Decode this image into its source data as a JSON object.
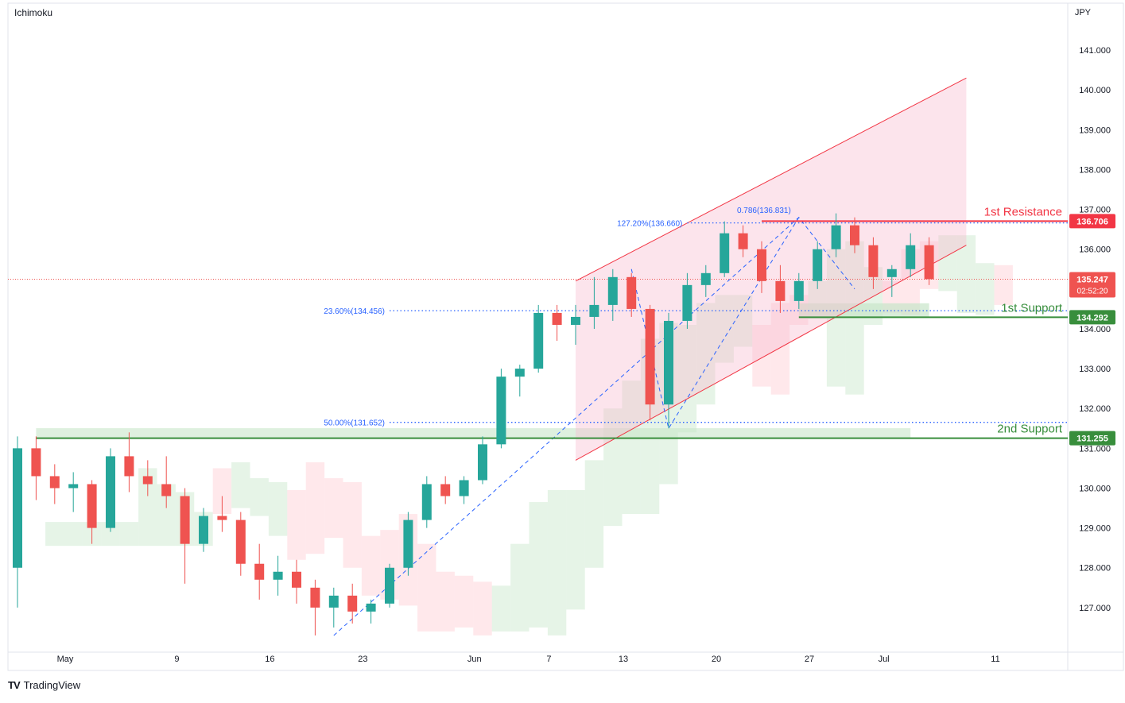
{
  "indicator": "Ichimoku",
  "currency": "JPY",
  "brand": "TradingView",
  "brand_logo": "TV",
  "chart_data": {
    "type": "candlestick",
    "ylim": [
      126.0,
      141.7
    ],
    "y_ticks": [
      127,
      128,
      129,
      130,
      131,
      132,
      133,
      134,
      135,
      136,
      137,
      138,
      139,
      140,
      141
    ],
    "x_ticks": [
      {
        "label": "May",
        "i": 0
      },
      {
        "label": "9",
        "i": 6
      },
      {
        "label": "16",
        "i": 11
      },
      {
        "label": "23",
        "i": 16
      },
      {
        "label": "Jun",
        "i": 22
      },
      {
        "label": "7",
        "i": 26
      },
      {
        "label": "13",
        "i": 30
      },
      {
        "label": "20",
        "i": 35
      },
      {
        "label": "27",
        "i": 40
      },
      {
        "label": "Jul",
        "i": 44
      },
      {
        "label": "11",
        "i": 50
      }
    ],
    "last_price": "135.247",
    "countdown": "02:52:20",
    "levels": [
      {
        "name": "1st Resistance",
        "value": 136.706,
        "label": "136.706",
        "color": "#f23645"
      },
      {
        "name": "1st Support",
        "value": 134.292,
        "label": "134.292",
        "color": "#388e3c"
      },
      {
        "name": "2nd Support",
        "value": 131.255,
        "label": "131.255",
        "color": "#388e3c"
      }
    ],
    "fib_labels": [
      {
        "text": "127.20%(136.660)",
        "value": 136.66
      },
      {
        "text": "23.60%(134.456)",
        "value": 134.456
      },
      {
        "text": "50.00%(131.652)",
        "value": 131.652
      },
      {
        "text": "0.786(136.831)",
        "value": 136.831
      }
    ],
    "channel": {
      "upper": [
        [
          30,
          135.2
        ],
        [
          51,
          140.3
        ]
      ],
      "lower": [
        [
          30,
          130.7
        ],
        [
          51,
          136.1
        ]
      ]
    },
    "colors": {
      "up": "#26a69a",
      "down": "#ef5350",
      "resistance": "#f23645",
      "support": "#388e3c",
      "fib": "#2962ff"
    },
    "candles": [
      [
        128.0,
        131.3,
        127.0,
        131.0
      ],
      [
        131.0,
        131.3,
        129.7,
        130.3
      ],
      [
        130.3,
        130.6,
        129.6,
        130.0
      ],
      [
        130.0,
        130.4,
        129.4,
        130.1
      ],
      [
        130.1,
        130.2,
        128.6,
        129.0
      ],
      [
        129.0,
        131.0,
        128.9,
        130.8
      ],
      [
        130.8,
        131.4,
        129.9,
        130.3
      ],
      [
        130.3,
        130.7,
        129.8,
        130.1
      ],
      [
        130.1,
        130.8,
        129.5,
        129.8
      ],
      [
        129.8,
        130.0,
        127.6,
        128.6
      ],
      [
        128.6,
        129.5,
        128.4,
        129.3
      ],
      [
        129.3,
        129.8,
        128.9,
        129.2
      ],
      [
        129.2,
        129.4,
        127.8,
        128.1
      ],
      [
        128.1,
        128.6,
        127.2,
        127.7
      ],
      [
        127.7,
        128.3,
        127.3,
        127.9
      ],
      [
        127.9,
        128.2,
        127.1,
        127.5
      ],
      [
        127.5,
        127.7,
        126.3,
        127.0
      ],
      [
        127.0,
        127.5,
        126.5,
        127.3
      ],
      [
        127.3,
        127.6,
        126.6,
        126.9
      ],
      [
        126.9,
        127.2,
        126.6,
        127.1
      ],
      [
        127.1,
        128.1,
        127.0,
        128.0
      ],
      [
        128.0,
        129.4,
        127.8,
        129.2
      ],
      [
        129.2,
        130.3,
        129.0,
        130.1
      ],
      [
        130.1,
        130.3,
        129.6,
        129.8
      ],
      [
        129.8,
        130.3,
        129.6,
        130.2
      ],
      [
        130.2,
        131.3,
        130.1,
        131.1
      ],
      [
        131.1,
        133.0,
        131.0,
        132.8
      ],
      [
        132.8,
        133.1,
        132.3,
        133.0
      ],
      [
        133.0,
        134.6,
        132.9,
        134.4
      ],
      [
        134.4,
        134.6,
        133.7,
        134.1
      ],
      [
        134.1,
        134.6,
        133.6,
        134.3
      ],
      [
        134.3,
        135.3,
        134.0,
        134.6
      ],
      [
        134.6,
        135.5,
        134.2,
        135.3
      ],
      [
        135.3,
        135.4,
        134.3,
        134.5
      ],
      [
        134.5,
        134.6,
        131.7,
        132.1
      ],
      [
        132.1,
        134.4,
        131.5,
        134.2
      ],
      [
        134.2,
        135.4,
        134.0,
        135.1
      ],
      [
        135.1,
        135.6,
        134.8,
        135.4
      ],
      [
        135.4,
        136.7,
        135.3,
        136.4
      ],
      [
        136.4,
        136.6,
        135.8,
        136.0
      ],
      [
        136.0,
        136.2,
        134.9,
        135.2
      ],
      [
        135.2,
        135.6,
        134.4,
        134.7
      ],
      [
        134.7,
        135.4,
        134.5,
        135.2
      ],
      [
        135.2,
        136.2,
        135.0,
        136.0
      ],
      [
        136.0,
        136.9,
        135.8,
        136.6
      ],
      [
        136.6,
        136.8,
        135.9,
        136.1
      ],
      [
        136.1,
        136.3,
        135.0,
        135.3
      ],
      [
        135.3,
        135.6,
        134.8,
        135.5
      ],
      [
        135.5,
        136.4,
        135.3,
        136.1
      ],
      [
        136.1,
        136.3,
        135.1,
        135.247
      ]
    ]
  }
}
